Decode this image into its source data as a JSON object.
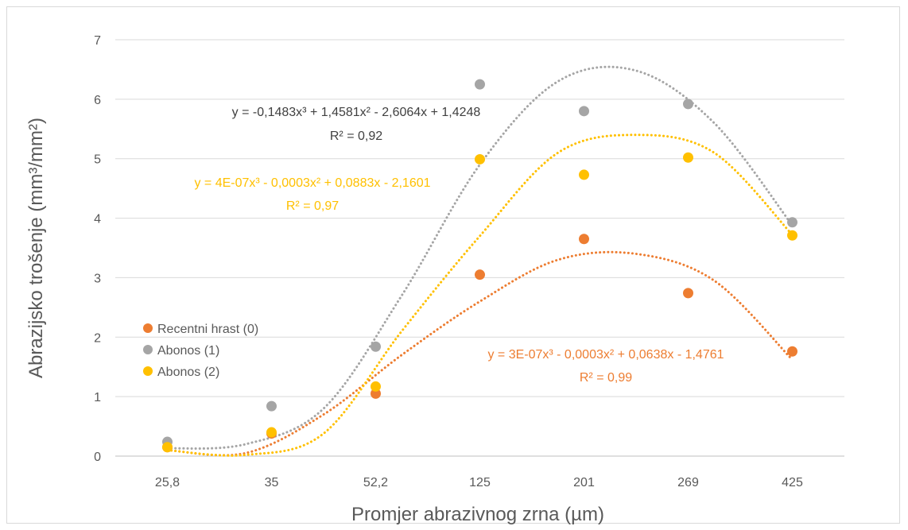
{
  "chart_data": {
    "type": "scatter",
    "title": "",
    "xlabel": "Promjer abrazivnog zrna (µm)",
    "ylabel": "Abrazijsko trošenje (mm³/mm²)",
    "categories": [
      "25,8",
      "35",
      "52,2",
      "125",
      "201",
      "269",
      "425"
    ],
    "ylim": [
      0,
      7
    ],
    "yticks": [
      0,
      1,
      2,
      3,
      4,
      5,
      6,
      7
    ],
    "grid": true,
    "legend_position": "left",
    "series": [
      {
        "name": "Recentni hrast (0)",
        "color": "#ed7d31",
        "values": [
          0.15,
          0.38,
          1.05,
          3.05,
          3.65,
          2.74,
          1.76
        ],
        "trendline": [
          0.1,
          0.05,
          0.7,
          1.7,
          2.6,
          3.3,
          3.4,
          2.95,
          1.62
        ],
        "equation": "y = 3E-07x³ - 0,0003x² + 0,0638x - 1,4761",
        "r2": "R² = 0,99"
      },
      {
        "name": "Abonos (1)",
        "color": "#a5a5a5",
        "values": [
          0.24,
          0.84,
          1.84,
          6.25,
          5.8,
          5.92,
          3.93
        ],
        "trendline": [
          0.13,
          0.2,
          0.8,
          2.7,
          4.9,
          6.3,
          6.48,
          5.6,
          3.88
        ],
        "equation": "y = -0,1483x³ + 1,4581x² - 2,6064x + 1,4248",
        "r2": "R² = 0,92"
      },
      {
        "name": "Abonos (2)",
        "color": "#ffc000",
        "values": [
          0.15,
          0.4,
          1.17,
          4.99,
          4.73,
          5.02,
          3.71
        ],
        "trendline": [
          0.1,
          0.02,
          0.38,
          2.1,
          3.7,
          5.1,
          5.4,
          5.1,
          3.72
        ],
        "equation": "y = 4E-07x³ - 0,0003x² + 0,0883x - 2,1601",
        "r2": "R² = 0,97"
      }
    ]
  }
}
